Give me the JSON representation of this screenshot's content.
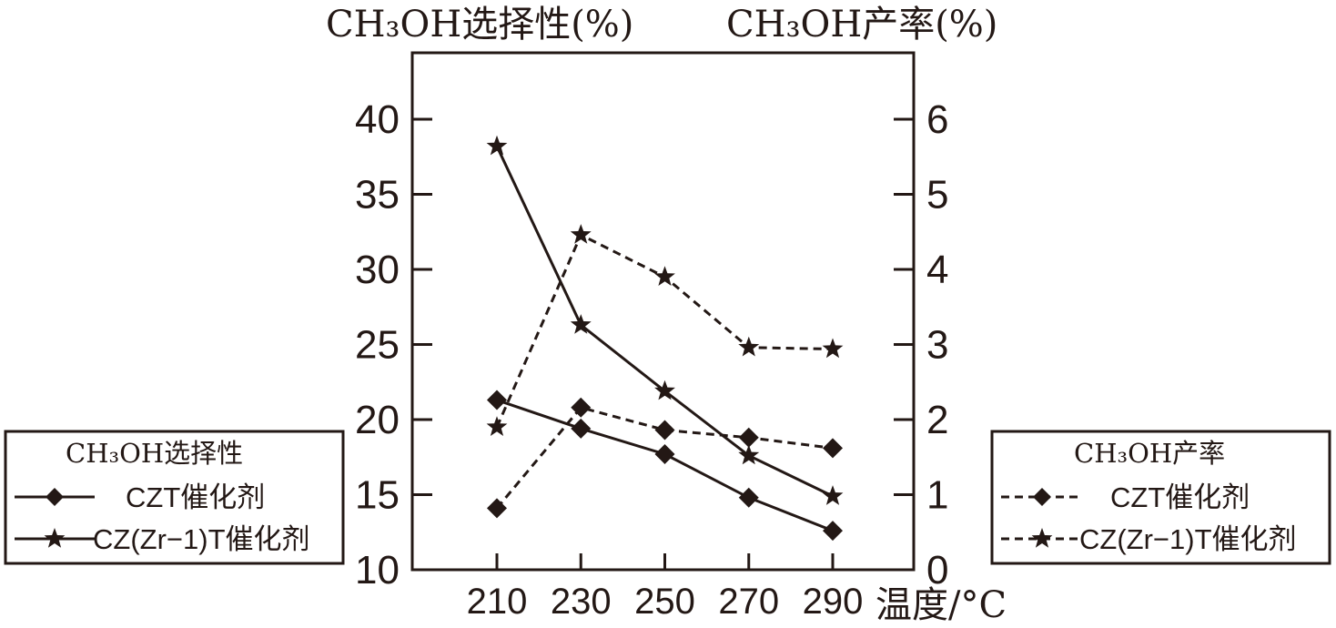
{
  "titles": {
    "left_axis_title": "CH₃OH选择性(%)",
    "right_axis_title": "CH₃OH产率(%)",
    "x_axis_unit": "温度/°C"
  },
  "legends": {
    "left": {
      "title": "CH₃OH选择性",
      "items": [
        "CZT催化剂",
        "CZ(Zr−1)T催化剂"
      ]
    },
    "right": {
      "title": "CH₃OH产率",
      "items": [
        "CZT催化剂",
        "CZ(Zr−1)T催化剂"
      ]
    }
  },
  "colors": {
    "ink": "#231815",
    "background": "#ffffff"
  },
  "chart_data": {
    "type": "line",
    "categories": [
      "210",
      "230",
      "250",
      "270",
      "290"
    ],
    "xlabel": "温度/°C",
    "y_left": {
      "label": "CH₃OH选择性(%)",
      "range": [
        10,
        45
      ],
      "ticks": [
        10,
        15,
        20,
        25,
        30,
        35,
        40
      ]
    },
    "y_right": {
      "label": "CH₃OH产率(%)",
      "range": [
        0,
        7
      ],
      "ticks": [
        0,
        1,
        2,
        3,
        4,
        5,
        6
      ]
    },
    "grid": false,
    "series": [
      {
        "name": "CZT催化剂",
        "group": "CH₃OH选择性",
        "axis": "left",
        "line": "solid",
        "marker": "diamond",
        "values": [
          21.3,
          19.4,
          17.7,
          14.8,
          12.6
        ]
      },
      {
        "name": "CZ(Zr−1)T催化剂",
        "group": "CH₃OH选择性",
        "axis": "left",
        "line": "solid",
        "marker": "star",
        "values": [
          38.2,
          26.3,
          21.9,
          17.6,
          14.9
        ]
      },
      {
        "name": "CZT催化剂",
        "group": "CH₃OH产率",
        "axis": "right",
        "line": "dashed",
        "marker": "diamond",
        "values": [
          0.82,
          2.16,
          1.86,
          1.76,
          1.62
        ]
      },
      {
        "name": "CZ(Zr−1)T催化剂",
        "group": "CH₃OH产率",
        "axis": "right",
        "line": "dashed",
        "marker": "star",
        "values": [
          1.9,
          4.46,
          3.9,
          2.96,
          2.94
        ]
      }
    ]
  }
}
